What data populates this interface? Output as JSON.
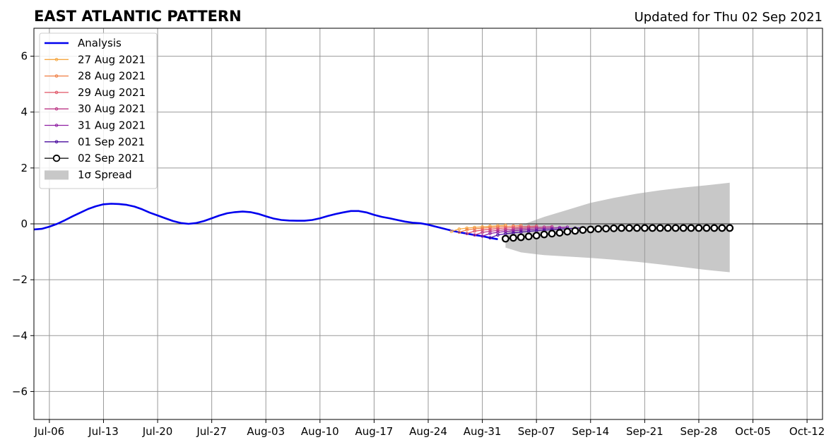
{
  "title": "EAST ATLANTIC PATTERN",
  "subtitle": "Updated for Thu 02 Sep 2021",
  "chart_data": {
    "type": "line",
    "x_axis": {
      "type": "date",
      "range": [
        "2021-07-04",
        "2021-10-14"
      ],
      "ticks": [
        {
          "date": "2021-07-06",
          "label": "Jul-06"
        },
        {
          "date": "2021-07-13",
          "label": "Jul-13"
        },
        {
          "date": "2021-07-20",
          "label": "Jul-20"
        },
        {
          "date": "2021-07-27",
          "label": "Jul-27"
        },
        {
          "date": "2021-08-03",
          "label": "Aug-03"
        },
        {
          "date": "2021-08-10",
          "label": "Aug-10"
        },
        {
          "date": "2021-08-17",
          "label": "Aug-17"
        },
        {
          "date": "2021-08-24",
          "label": "Aug-24"
        },
        {
          "date": "2021-08-31",
          "label": "Aug-31"
        },
        {
          "date": "2021-09-07",
          "label": "Sep-07"
        },
        {
          "date": "2021-09-14",
          "label": "Sep-14"
        },
        {
          "date": "2021-09-21",
          "label": "Sep-21"
        },
        {
          "date": "2021-09-28",
          "label": "Sep-28"
        },
        {
          "date": "2021-10-05",
          "label": "Oct-05"
        },
        {
          "date": "2021-10-12",
          "label": "Oct-12"
        }
      ]
    },
    "y_axis": {
      "range": [
        -7,
        7
      ],
      "ticks": [
        {
          "value": -6,
          "label": "−6"
        },
        {
          "value": -4,
          "label": "−4"
        },
        {
          "value": -2,
          "label": "−2"
        },
        {
          "value": 0,
          "label": "0"
        },
        {
          "value": 2,
          "label": "2"
        },
        {
          "value": 4,
          "label": "4"
        },
        {
          "value": 6,
          "label": "6"
        }
      ]
    },
    "grid": true,
    "zero_line": true,
    "legend_position": "top-left",
    "analysis": {
      "name": "Analysis",
      "color": "#0000ee",
      "points": [
        [
          "2021-07-04",
          -0.2
        ],
        [
          "2021-07-05",
          -0.18
        ],
        [
          "2021-07-06",
          -0.1
        ],
        [
          "2021-07-07",
          0.0
        ],
        [
          "2021-07-08",
          0.13
        ],
        [
          "2021-07-09",
          0.27
        ],
        [
          "2021-07-10",
          0.4
        ],
        [
          "2021-07-11",
          0.53
        ],
        [
          "2021-07-12",
          0.63
        ],
        [
          "2021-07-13",
          0.7
        ],
        [
          "2021-07-14",
          0.72
        ],
        [
          "2021-07-15",
          0.71
        ],
        [
          "2021-07-16",
          0.68
        ],
        [
          "2021-07-17",
          0.62
        ],
        [
          "2021-07-18",
          0.52
        ],
        [
          "2021-07-19",
          0.4
        ],
        [
          "2021-07-20",
          0.3
        ],
        [
          "2021-07-21",
          0.2
        ],
        [
          "2021-07-22",
          0.1
        ],
        [
          "2021-07-23",
          0.03
        ],
        [
          "2021-07-24",
          0.0
        ],
        [
          "2021-07-25",
          0.03
        ],
        [
          "2021-07-26",
          0.1
        ],
        [
          "2021-07-27",
          0.2
        ],
        [
          "2021-07-28",
          0.3
        ],
        [
          "2021-07-29",
          0.38
        ],
        [
          "2021-07-30",
          0.42
        ],
        [
          "2021-07-31",
          0.44
        ],
        [
          "2021-08-01",
          0.42
        ],
        [
          "2021-08-02",
          0.36
        ],
        [
          "2021-08-03",
          0.27
        ],
        [
          "2021-08-04",
          0.19
        ],
        [
          "2021-08-05",
          0.14
        ],
        [
          "2021-08-06",
          0.12
        ],
        [
          "2021-08-07",
          0.11
        ],
        [
          "2021-08-08",
          0.11
        ],
        [
          "2021-08-09",
          0.14
        ],
        [
          "2021-08-10",
          0.2
        ],
        [
          "2021-08-11",
          0.28
        ],
        [
          "2021-08-12",
          0.35
        ],
        [
          "2021-08-13",
          0.41
        ],
        [
          "2021-08-14",
          0.46
        ],
        [
          "2021-08-15",
          0.46
        ],
        [
          "2021-08-16",
          0.41
        ],
        [
          "2021-08-17",
          0.32
        ],
        [
          "2021-08-18",
          0.25
        ],
        [
          "2021-08-19",
          0.2
        ],
        [
          "2021-08-20",
          0.14
        ],
        [
          "2021-08-21",
          0.08
        ],
        [
          "2021-08-22",
          0.04
        ],
        [
          "2021-08-23",
          0.02
        ],
        [
          "2021-08-24",
          -0.03
        ],
        [
          "2021-08-25",
          -0.1
        ],
        [
          "2021-08-26",
          -0.17
        ],
        [
          "2021-08-27",
          -0.24
        ],
        [
          "2021-08-28",
          -0.3
        ],
        [
          "2021-08-29",
          -0.35
        ],
        [
          "2021-08-30",
          -0.4
        ],
        [
          "2021-08-31",
          -0.44
        ],
        [
          "2021-09-01",
          -0.5
        ],
        [
          "2021-09-02",
          -0.55
        ]
      ]
    },
    "forecasts": [
      {
        "name": "27 Aug 2021",
        "color": "#f5a742",
        "start": "2021-08-27",
        "days": 7,
        "y_start": -0.27,
        "y_end": -0.05
      },
      {
        "name": "28 Aug 2021",
        "color": "#f07e43",
        "start": "2021-08-28",
        "days": 8,
        "y_start": -0.3,
        "y_end": -0.06
      },
      {
        "name": "29 Aug 2021",
        "color": "#e05466",
        "start": "2021-08-29",
        "days": 9,
        "y_start": -0.35,
        "y_end": -0.08
      },
      {
        "name": "30 Aug 2021",
        "color": "#bd3786",
        "start": "2021-08-30",
        "days": 10,
        "y_start": -0.4,
        "y_end": -0.1
      },
      {
        "name": "31 Aug 2021",
        "color": "#8f1fa2",
        "start": "2021-08-31",
        "days": 11,
        "y_start": -0.44,
        "y_end": -0.12
      },
      {
        "name": "01 Sep 2021",
        "color": "#4a0c9e",
        "start": "2021-09-01",
        "days": 12,
        "y_start": -0.5,
        "y_end": -0.14
      }
    ],
    "current_forecast": {
      "name": "02 Sep 2021",
      "color": "#000000",
      "marker_fill": "#ffffff",
      "points": [
        [
          "2021-09-03",
          -0.53
        ],
        [
          "2021-09-04",
          -0.5
        ],
        [
          "2021-09-05",
          -0.48
        ],
        [
          "2021-09-06",
          -0.45
        ],
        [
          "2021-09-07",
          -0.42
        ],
        [
          "2021-09-08",
          -0.38
        ],
        [
          "2021-09-09",
          -0.35
        ],
        [
          "2021-09-10",
          -0.32
        ],
        [
          "2021-09-11",
          -0.28
        ],
        [
          "2021-09-12",
          -0.25
        ],
        [
          "2021-09-13",
          -0.22
        ],
        [
          "2021-09-14",
          -0.2
        ],
        [
          "2021-09-15",
          -0.18
        ],
        [
          "2021-09-16",
          -0.17
        ],
        [
          "2021-09-17",
          -0.16
        ],
        [
          "2021-09-18",
          -0.15
        ],
        [
          "2021-09-19",
          -0.15
        ],
        [
          "2021-09-20",
          -0.15
        ],
        [
          "2021-09-21",
          -0.15
        ],
        [
          "2021-09-22",
          -0.15
        ],
        [
          "2021-09-23",
          -0.15
        ],
        [
          "2021-09-24",
          -0.15
        ],
        [
          "2021-09-25",
          -0.15
        ],
        [
          "2021-09-26",
          -0.15
        ],
        [
          "2021-09-27",
          -0.15
        ],
        [
          "2021-09-28",
          -0.15
        ],
        [
          "2021-09-29",
          -0.15
        ],
        [
          "2021-09-30",
          -0.15
        ],
        [
          "2021-10-01",
          -0.15
        ],
        [
          "2021-10-02",
          -0.15
        ]
      ]
    },
    "spread": {
      "name": "1σ Spread",
      "color": "#c8c8c8",
      "upper": [
        [
          "2021-09-03",
          -0.3
        ],
        [
          "2021-09-05",
          -0.05
        ],
        [
          "2021-09-08",
          0.25
        ],
        [
          "2021-09-11",
          0.5
        ],
        [
          "2021-09-14",
          0.75
        ],
        [
          "2021-09-17",
          0.93
        ],
        [
          "2021-09-20",
          1.08
        ],
        [
          "2021-09-23",
          1.2
        ],
        [
          "2021-09-26",
          1.3
        ],
        [
          "2021-09-29",
          1.38
        ],
        [
          "2021-10-02",
          1.47
        ]
      ],
      "lower": [
        [
          "2021-09-03",
          -0.85
        ],
        [
          "2021-09-05",
          -1.02
        ],
        [
          "2021-09-08",
          -1.12
        ],
        [
          "2021-09-11",
          -1.17
        ],
        [
          "2021-09-14",
          -1.22
        ],
        [
          "2021-09-17",
          -1.28
        ],
        [
          "2021-09-20",
          -1.36
        ],
        [
          "2021-09-23",
          -1.45
        ],
        [
          "2021-09-26",
          -1.55
        ],
        [
          "2021-09-29",
          -1.65
        ],
        [
          "2021-10-02",
          -1.73
        ]
      ]
    }
  }
}
